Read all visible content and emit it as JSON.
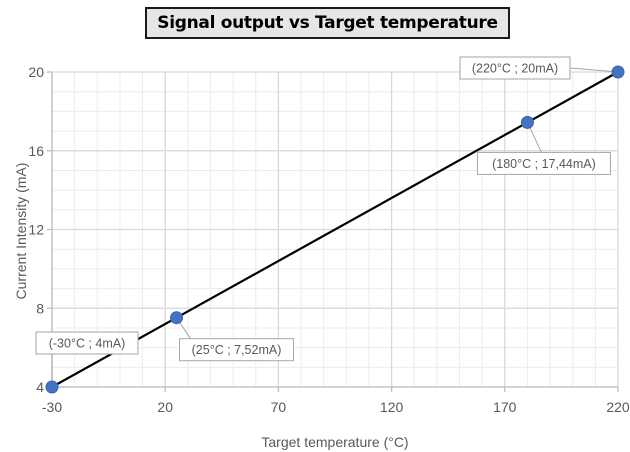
{
  "chart_data": {
    "type": "scatter",
    "title": "Signal output vs Target temperature",
    "xlabel": "Target temperature (°C)",
    "ylabel": "Current Intensity (mA)",
    "xlim": [
      -30,
      220
    ],
    "ylim": [
      4,
      20
    ],
    "xticks": [
      -30,
      20,
      70,
      120,
      170,
      220
    ],
    "yticks": [
      4,
      8,
      12,
      16,
      20
    ],
    "grid": true,
    "series": [
      {
        "x": [
          -30,
          25,
          180,
          220
        ],
        "y": [
          4,
          7.52,
          17.44,
          20
        ],
        "labels": [
          "(-30°C ; 4mA)",
          "(25°C ; 7,52mA)",
          "(180°C ; 17,44mA)",
          "(220°C ; 20mA)"
        ]
      }
    ],
    "colors": {
      "marker": "#4472c4",
      "line": "#000000",
      "grid": "#d9d9d9",
      "axis": "#bfbfbf",
      "label_border": "#a6a6a6",
      "text": "#595959"
    }
  }
}
